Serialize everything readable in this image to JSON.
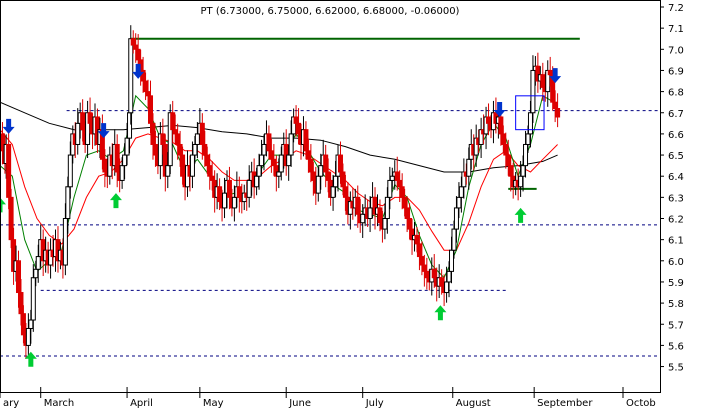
{
  "chart_data": {
    "type": "candlestick",
    "title": "PT (6.73000, 6.75000, 6.62000, 6.68000, -0.06000)",
    "ylim": [
      5.4,
      7.25
    ],
    "y_ticks": [
      "7.2",
      "7.1",
      "7.0",
      "6.9",
      "6.8",
      "6.7",
      "6.6",
      "6.5",
      "6.4",
      "6.3",
      "6.2",
      "6.1",
      "6.0",
      "5.9",
      "5.8",
      "5.7",
      "5.6",
      "5.5"
    ],
    "x_ticks": [
      {
        "label": "ary",
        "t": 0
      },
      {
        "label": "March",
        "t": 33
      },
      {
        "label": "April",
        "t": 103
      },
      {
        "label": "May",
        "t": 162
      },
      {
        "label": "June",
        "t": 232
      },
      {
        "label": "July",
        "t": 294
      },
      {
        "label": "August",
        "t": 367
      },
      {
        "label": "September",
        "t": 433
      },
      {
        "label": "Octob",
        "t": 505
      }
    ],
    "t_max": 535,
    "colors": {
      "up": "#000000",
      "down": "#dd0000",
      "ma_fast": "#008000",
      "ma_mid": "#ff0000",
      "ma_slow": "#000000",
      "level": "#000080",
      "resistance": "#006400",
      "arrow_up": "#00cc33",
      "arrow_down": "#0033cc",
      "box": "#0000ff"
    },
    "close_path": [
      [
        0,
        6.6
      ],
      [
        2,
        6.52
      ],
      [
        4,
        6.46
      ],
      [
        5,
        6.55
      ],
      [
        7,
        6.3
      ],
      [
        9,
        6.1
      ],
      [
        11,
        5.95
      ],
      [
        13,
        6.0
      ],
      [
        15,
        5.85
      ],
      [
        17,
        5.75
      ],
      [
        19,
        5.65
      ],
      [
        21,
        5.6
      ],
      [
        23,
        5.68
      ],
      [
        25,
        5.72
      ],
      [
        27,
        5.92
      ],
      [
        29,
        5.96
      ],
      [
        31,
        6.02
      ],
      [
        33,
        6.1
      ],
      [
        35,
        6.0
      ],
      [
        37,
        6.05
      ],
      [
        39,
        5.98
      ],
      [
        41,
        6.05
      ],
      [
        43,
        6.02
      ],
      [
        45,
        6.1
      ],
      [
        47,
        6.0
      ],
      [
        49,
        6.05
      ],
      [
        51,
        5.98
      ],
      [
        53,
        6.2
      ],
      [
        55,
        6.35
      ],
      [
        57,
        6.5
      ],
      [
        59,
        6.6
      ],
      [
        61,
        6.55
      ],
      [
        63,
        6.65
      ],
      [
        65,
        6.7
      ],
      [
        67,
        6.62
      ],
      [
        69,
        6.55
      ],
      [
        71,
        6.7
      ],
      [
        73,
        6.65
      ],
      [
        75,
        6.6
      ],
      [
        77,
        6.68
      ],
      [
        79,
        6.55
      ],
      [
        81,
        6.62
      ],
      [
        83,
        6.48
      ],
      [
        85,
        6.42
      ],
      [
        87,
        6.4
      ],
      [
        89,
        6.5
      ],
      [
        91,
        6.45
      ],
      [
        93,
        6.55
      ],
      [
        95,
        6.42
      ],
      [
        97,
        6.38
      ],
      [
        99,
        6.45
      ],
      [
        101,
        6.5
      ],
      [
        103,
        6.58
      ],
      [
        105,
        6.7
      ],
      [
        106,
        7.05
      ],
      [
        108,
        7.02
      ],
      [
        110,
        7.0
      ],
      [
        112,
        6.95
      ],
      [
        114,
        6.9
      ],
      [
        116,
        6.85
      ],
      [
        118,
        6.8
      ],
      [
        120,
        6.78
      ],
      [
        122,
        6.65
      ],
      [
        124,
        6.55
      ],
      [
        126,
        6.5
      ],
      [
        128,
        6.45
      ],
      [
        130,
        6.6
      ],
      [
        132,
        6.55
      ],
      [
        134,
        6.4
      ],
      [
        136,
        6.45
      ],
      [
        138,
        6.7
      ],
      [
        140,
        6.62
      ],
      [
        142,
        6.6
      ],
      [
        144,
        6.55
      ],
      [
        146,
        6.5
      ],
      [
        148,
        6.4
      ],
      [
        150,
        6.35
      ],
      [
        152,
        6.45
      ],
      [
        154,
        6.4
      ],
      [
        156,
        6.5
      ],
      [
        158,
        6.55
      ],
      [
        160,
        6.6
      ],
      [
        162,
        6.65
      ],
      [
        164,
        6.55
      ],
      [
        166,
        6.5
      ],
      [
        168,
        6.45
      ],
      [
        170,
        6.4
      ],
      [
        172,
        6.38
      ],
      [
        174,
        6.3
      ],
      [
        176,
        6.35
      ],
      [
        178,
        6.28
      ],
      [
        180,
        6.25
      ],
      [
        182,
        6.32
      ],
      [
        184,
        6.38
      ],
      [
        186,
        6.3
      ],
      [
        188,
        6.25
      ],
      [
        190,
        6.3
      ],
      [
        192,
        6.35
      ],
      [
        194,
        6.3
      ],
      [
        196,
        6.28
      ],
      [
        198,
        6.32
      ],
      [
        200,
        6.3
      ],
      [
        202,
        6.38
      ],
      [
        204,
        6.42
      ],
      [
        206,
        6.35
      ],
      [
        208,
        6.4
      ],
      [
        210,
        6.45
      ],
      [
        212,
        6.5
      ],
      [
        214,
        6.55
      ],
      [
        216,
        6.6
      ],
      [
        218,
        6.52
      ],
      [
        220,
        6.48
      ],
      [
        222,
        6.45
      ],
      [
        224,
        6.4
      ],
      [
        226,
        6.42
      ],
      [
        228,
        6.5
      ],
      [
        230,
        6.55
      ],
      [
        232,
        6.45
      ],
      [
        234,
        6.5
      ],
      [
        236,
        6.6
      ],
      [
        238,
        6.68
      ],
      [
        240,
        6.65
      ],
      [
        242,
        6.6
      ],
      [
        244,
        6.55
      ],
      [
        246,
        6.62
      ],
      [
        248,
        6.52
      ],
      [
        250,
        6.48
      ],
      [
        252,
        6.42
      ],
      [
        254,
        6.38
      ],
      [
        256,
        6.32
      ],
      [
        258,
        6.4
      ],
      [
        260,
        6.45
      ],
      [
        262,
        6.5
      ],
      [
        264,
        6.42
      ],
      [
        266,
        6.38
      ],
      [
        268,
        6.3
      ],
      [
        270,
        6.35
      ],
      [
        272,
        6.4
      ],
      [
        274,
        6.5
      ],
      [
        276,
        6.42
      ],
      [
        278,
        6.35
      ],
      [
        280,
        6.3
      ],
      [
        282,
        6.22
      ],
      [
        284,
        6.28
      ],
      [
        286,
        6.25
      ],
      [
        288,
        6.3
      ],
      [
        290,
        6.22
      ],
      [
        292,
        6.18
      ],
      [
        294,
        6.22
      ],
      [
        296,
        6.25
      ],
      [
        298,
        6.2
      ],
      [
        300,
        6.25
      ],
      [
        302,
        6.3
      ],
      [
        304,
        6.22
      ],
      [
        306,
        6.25
      ],
      [
        308,
        6.18
      ],
      [
        310,
        6.15
      ],
      [
        312,
        6.2
      ],
      [
        314,
        6.3
      ],
      [
        316,
        6.38
      ],
      [
        318,
        6.4
      ],
      [
        320,
        6.42
      ],
      [
        322,
        6.38
      ],
      [
        324,
        6.35
      ],
      [
        326,
        6.3
      ],
      [
        328,
        6.25
      ],
      [
        330,
        6.2
      ],
      [
        332,
        6.15
      ],
      [
        334,
        6.1
      ],
      [
        336,
        6.12
      ],
      [
        338,
        6.08
      ],
      [
        340,
        6.02
      ],
      [
        342,
        5.98
      ],
      [
        344,
        5.95
      ],
      [
        346,
        5.92
      ],
      [
        348,
        5.9
      ],
      [
        350,
        5.96
      ],
      [
        352,
        5.92
      ],
      [
        354,
        5.88
      ],
      [
        356,
        5.92
      ],
      [
        358,
        5.88
      ],
      [
        360,
        5.85
      ],
      [
        362,
        5.9
      ],
      [
        364,
        5.95
      ],
      [
        366,
        6.05
      ],
      [
        368,
        6.15
      ],
      [
        370,
        6.25
      ],
      [
        372,
        6.3
      ],
      [
        374,
        6.35
      ],
      [
        376,
        6.42
      ],
      [
        378,
        6.4
      ],
      [
        380,
        6.48
      ],
      [
        382,
        6.55
      ],
      [
        384,
        6.5
      ],
      [
        386,
        6.58
      ],
      [
        388,
        6.55
      ],
      [
        390,
        6.62
      ],
      [
        392,
        6.6
      ],
      [
        394,
        6.68
      ],
      [
        396,
        6.65
      ],
      [
        398,
        6.62
      ],
      [
        400,
        6.7
      ],
      [
        402,
        6.65
      ],
      [
        404,
        6.68
      ],
      [
        406,
        6.6
      ],
      [
        408,
        6.55
      ],
      [
        410,
        6.5
      ],
      [
        412,
        6.45
      ],
      [
        414,
        6.4
      ],
      [
        416,
        6.35
      ],
      [
        418,
        6.38
      ],
      [
        420,
        6.35
      ],
      [
        422,
        6.4
      ],
      [
        424,
        6.45
      ],
      [
        426,
        6.55
      ],
      [
        428,
        6.6
      ],
      [
        430,
        6.7
      ],
      [
        432,
        6.9
      ],
      [
        434,
        6.92
      ],
      [
        436,
        6.85
      ],
      [
        438,
        6.88
      ],
      [
        440,
        6.82
      ],
      [
        442,
        6.8
      ],
      [
        444,
        6.9
      ],
      [
        446,
        6.88
      ],
      [
        448,
        6.75
      ],
      [
        450,
        6.72
      ],
      [
        452,
        6.68
      ]
    ],
    "ma_fast": [
      [
        0,
        6.45
      ],
      [
        10,
        6.4
      ],
      [
        20,
        6.1
      ],
      [
        30,
        5.95
      ],
      [
        40,
        6.0
      ],
      [
        50,
        6.05
      ],
      [
        60,
        6.3
      ],
      [
        70,
        6.5
      ],
      [
        80,
        6.52
      ],
      [
        90,
        6.48
      ],
      [
        100,
        6.52
      ],
      [
        110,
        6.78
      ],
      [
        120,
        6.72
      ],
      [
        130,
        6.58
      ],
      [
        140,
        6.55
      ],
      [
        150,
        6.42
      ],
      [
        160,
        6.48
      ],
      [
        170,
        6.4
      ],
      [
        180,
        6.3
      ],
      [
        190,
        6.32
      ],
      [
        200,
        6.32
      ],
      [
        210,
        6.42
      ],
      [
        220,
        6.5
      ],
      [
        230,
        6.5
      ],
      [
        240,
        6.6
      ],
      [
        250,
        6.52
      ],
      [
        260,
        6.42
      ],
      [
        270,
        6.36
      ],
      [
        280,
        6.32
      ],
      [
        290,
        6.24
      ],
      [
        300,
        6.22
      ],
      [
        310,
        6.2
      ],
      [
        320,
        6.36
      ],
      [
        330,
        6.3
      ],
      [
        340,
        6.12
      ],
      [
        350,
        5.98
      ],
      [
        360,
        5.92
      ],
      [
        370,
        6.05
      ],
      [
        380,
        6.35
      ],
      [
        390,
        6.55
      ],
      [
        400,
        6.65
      ],
      [
        410,
        6.58
      ],
      [
        420,
        6.4
      ],
      [
        430,
        6.55
      ],
      [
        440,
        6.78
      ],
      [
        452,
        6.74
      ]
    ],
    "ma_mid": [
      [
        0,
        6.62
      ],
      [
        10,
        6.55
      ],
      [
        20,
        6.35
      ],
      [
        30,
        6.2
      ],
      [
        40,
        6.12
      ],
      [
        50,
        6.08
      ],
      [
        60,
        6.15
      ],
      [
        70,
        6.3
      ],
      [
        80,
        6.4
      ],
      [
        90,
        6.42
      ],
      [
        100,
        6.48
      ],
      [
        110,
        6.58
      ],
      [
        120,
        6.6
      ],
      [
        130,
        6.58
      ],
      [
        140,
        6.56
      ],
      [
        150,
        6.52
      ],
      [
        160,
        6.52
      ],
      [
        170,
        6.48
      ],
      [
        180,
        6.42
      ],
      [
        190,
        6.38
      ],
      [
        200,
        6.38
      ],
      [
        210,
        6.4
      ],
      [
        220,
        6.45
      ],
      [
        230,
        6.48
      ],
      [
        240,
        6.52
      ],
      [
        250,
        6.5
      ],
      [
        260,
        6.46
      ],
      [
        270,
        6.42
      ],
      [
        280,
        6.38
      ],
      [
        290,
        6.32
      ],
      [
        300,
        6.28
      ],
      [
        310,
        6.26
      ],
      [
        320,
        6.3
      ],
      [
        330,
        6.3
      ],
      [
        340,
        6.24
      ],
      [
        350,
        6.14
      ],
      [
        360,
        6.05
      ],
      [
        370,
        6.05
      ],
      [
        380,
        6.18
      ],
      [
        390,
        6.35
      ],
      [
        400,
        6.48
      ],
      [
        410,
        6.52
      ],
      [
        420,
        6.45
      ],
      [
        430,
        6.42
      ],
      [
        440,
        6.48
      ],
      [
        452,
        6.55
      ]
    ],
    "ma_slow": [
      [
        0,
        6.75
      ],
      [
        20,
        6.7
      ],
      [
        40,
        6.65
      ],
      [
        60,
        6.62
      ],
      [
        80,
        6.62
      ],
      [
        100,
        6.62
      ],
      [
        120,
        6.63
      ],
      [
        140,
        6.64
      ],
      [
        160,
        6.63
      ],
      [
        180,
        6.61
      ],
      [
        200,
        6.6
      ],
      [
        220,
        6.58
      ],
      [
        240,
        6.58
      ],
      [
        260,
        6.57
      ],
      [
        280,
        6.54
      ],
      [
        300,
        6.5
      ],
      [
        320,
        6.48
      ],
      [
        340,
        6.45
      ],
      [
        360,
        6.42
      ],
      [
        380,
        6.42
      ],
      [
        400,
        6.44
      ],
      [
        420,
        6.45
      ],
      [
        440,
        6.47
      ],
      [
        452,
        6.5
      ]
    ],
    "levels": [
      {
        "y": 6.71,
        "t0": 54,
        "t1": 535,
        "style": "dashed",
        "color": "level"
      },
      {
        "y": 6.17,
        "t0": 0,
        "t1": 535,
        "style": "dashed",
        "color": "level"
      },
      {
        "y": 5.86,
        "t0": 33,
        "t1": 410,
        "style": "dashed",
        "color": "level"
      },
      {
        "y": 5.55,
        "t0": 0,
        "t1": 535,
        "style": "dashed",
        "color": "level"
      },
      {
        "y": 7.05,
        "t0": 106,
        "t1": 470,
        "style": "solid",
        "color": "resistance"
      },
      {
        "y": 6.34,
        "t0": 412,
        "t1": 435,
        "style": "solid",
        "color": "resistance"
      }
    ],
    "up_arrows": [
      [
        0,
        6.3
      ],
      [
        25,
        5.57
      ],
      [
        94,
        6.32
      ],
      [
        357,
        5.79
      ],
      [
        422,
        6.25
      ]
    ],
    "down_arrows": [
      [
        7,
        6.6
      ],
      [
        84,
        6.58
      ],
      [
        112,
        6.86
      ],
      [
        405,
        6.68
      ],
      [
        450,
        6.84
      ]
    ],
    "box": {
      "t0": 418,
      "t1": 441,
      "y0": 6.62,
      "y1": 6.78
    }
  }
}
